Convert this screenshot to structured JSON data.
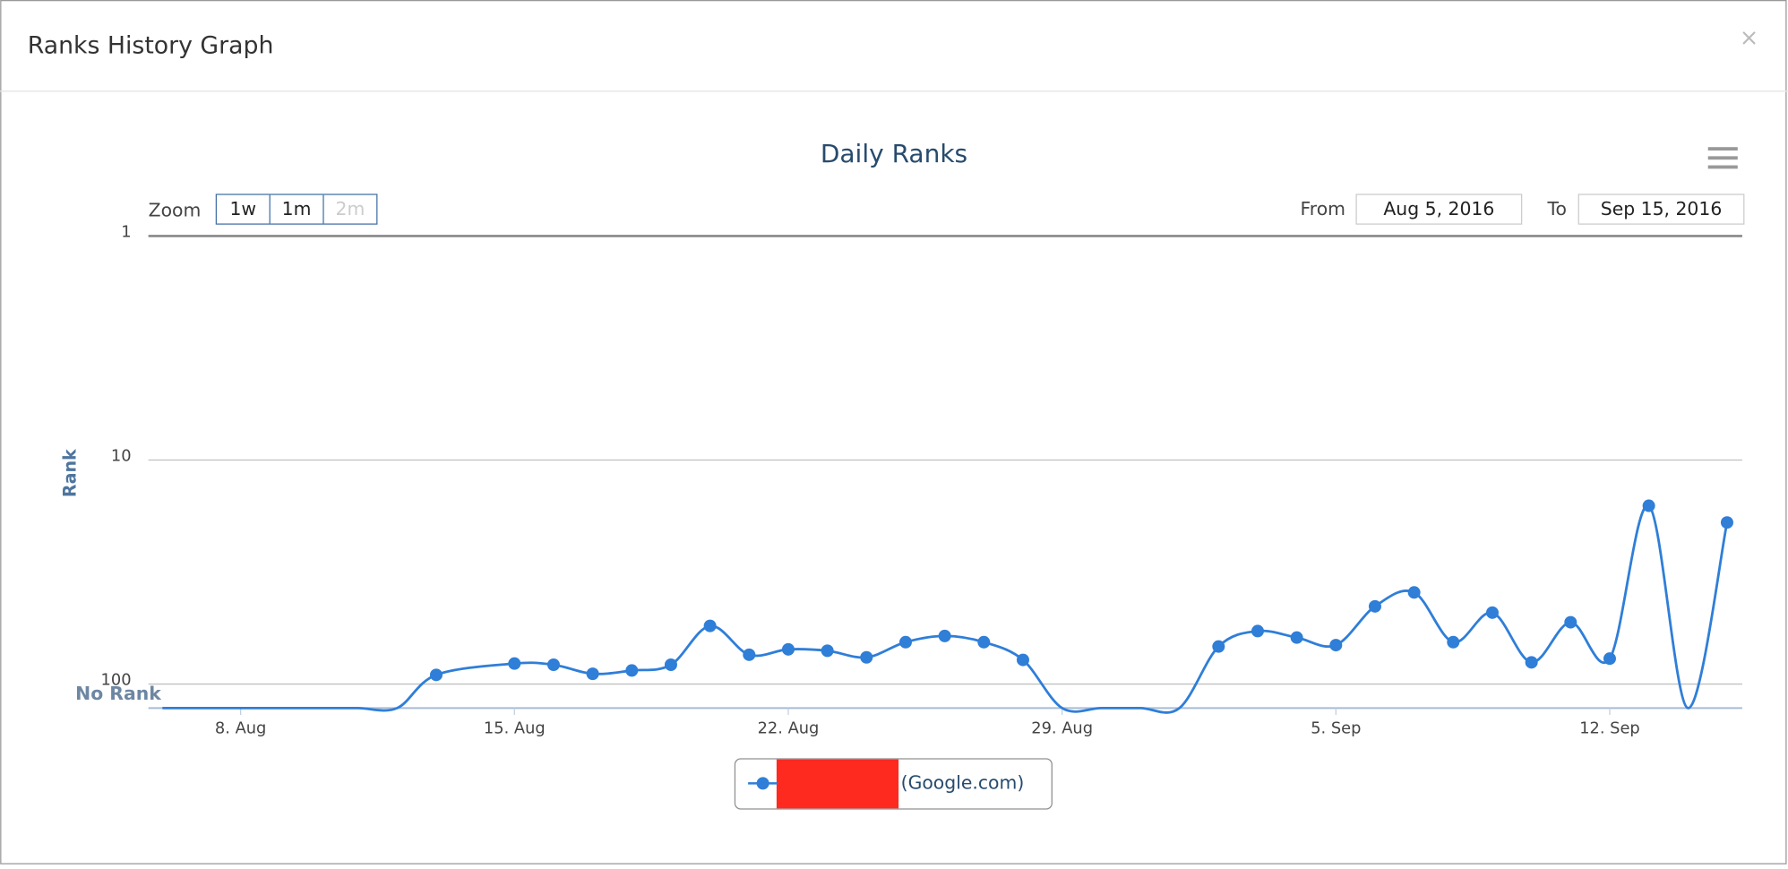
{
  "dialog": {
    "title": "Ranks History Graph",
    "close": "×"
  },
  "range_selector": {
    "zoom_label": "Zoom",
    "buttons": [
      "1w",
      "1m",
      "2m"
    ],
    "from_label": "From",
    "from": "Aug 5, 2016",
    "to_label": "To",
    "to": "Sep 15, 2016"
  },
  "chart_data": {
    "type": "line",
    "title": "Daily Ranks",
    "y_label": "Rank",
    "log_scale": true,
    "y_reversed": true,
    "smooth": true,
    "grid": true,
    "x": [
      "2016-08-06",
      "2016-08-07",
      "2016-08-08",
      "2016-08-09",
      "2016-08-10",
      "2016-08-11",
      "2016-08-12",
      "2016-08-13",
      "2016-08-15",
      "2016-08-16",
      "2016-08-17",
      "2016-08-18",
      "2016-08-19",
      "2016-08-20",
      "2016-08-21",
      "2016-08-22",
      "2016-08-23",
      "2016-08-24",
      "2016-08-25",
      "2016-08-26",
      "2016-08-27",
      "2016-08-28",
      "2016-08-29",
      "2016-08-30",
      "2016-08-31",
      "2016-09-01",
      "2016-09-02",
      "2016-09-03",
      "2016-09-04",
      "2016-09-05",
      "2016-09-06",
      "2016-09-07",
      "2016-09-08",
      "2016-09-09",
      "2016-09-10",
      "2016-09-11",
      "2016-09-12",
      "2016-09-13",
      "2016-09-14",
      "2016-09-15"
    ],
    "series": [
      {
        "name": "(Google.com)",
        "color": "#2f7ed8",
        "values": [
          128,
          128,
          128,
          128,
          128,
          128,
          128,
          91,
          81,
          82,
          90,
          87,
          82,
          55,
          74,
          70,
          71,
          76,
          65,
          61,
          65,
          78,
          128,
          128,
          128,
          128,
          68,
          58,
          62,
          67,
          45,
          39,
          65,
          48,
          80,
          53,
          77,
          16,
          128,
          19
        ]
      }
    ],
    "xlim": [
      "2016-08-05",
      "2016-09-16"
    ],
    "xticks": [
      {
        "value": "2016-08-08",
        "label": "8. Aug"
      },
      {
        "value": "2016-08-15",
        "label": "15. Aug"
      },
      {
        "value": "2016-08-22",
        "label": "22. Aug"
      },
      {
        "value": "2016-08-29",
        "label": "29. Aug"
      },
      {
        "value": "2016-09-05",
        "label": "5. Sep"
      },
      {
        "value": "2016-09-12",
        "label": "12. Sep"
      }
    ],
    "ylim": [
      1,
      128
    ],
    "yticks": [
      1,
      10,
      100,
      {
        "value": 128,
        "label": "No Rank"
      }
    ]
  }
}
